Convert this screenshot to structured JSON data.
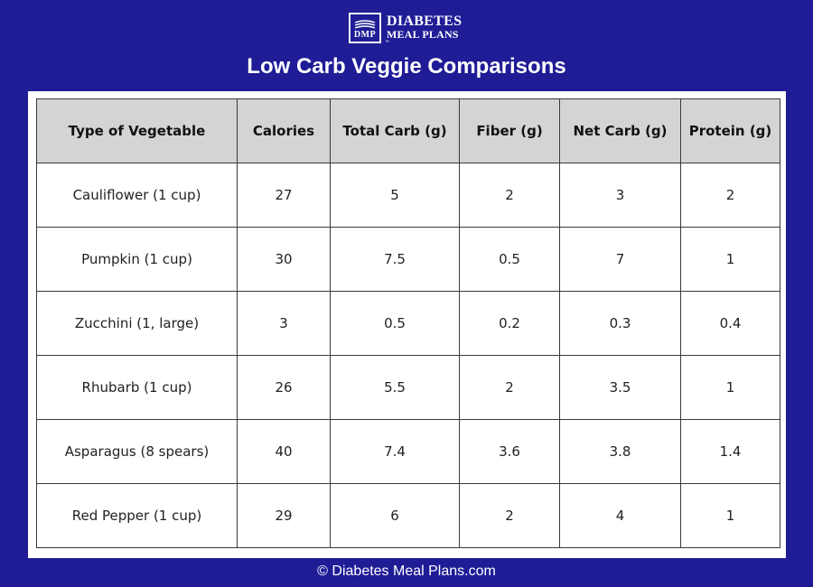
{
  "logo": {
    "mark": "DMP",
    "line1": "DIABETES",
    "line2": "MEAL PLANS",
    "tm": "™"
  },
  "title": "Low Carb Veggie Comparisons",
  "table": {
    "headers": [
      "Type of Vegetable",
      "Calories",
      "Total Carb (g)",
      "Fiber (g)",
      "Net Carb (g)",
      "Protein (g)"
    ],
    "rows": [
      [
        "Cauliflower (1 cup)",
        "27",
        "5",
        "2",
        "3",
        "2"
      ],
      [
        "Pumpkin (1 cup)",
        "30",
        "7.5",
        "0.5",
        "7",
        "1"
      ],
      [
        "Zucchini (1, large)",
        "3",
        "0.5",
        "0.2",
        "0.3",
        "0.4"
      ],
      [
        "Rhubarb (1 cup)",
        "26",
        "5.5",
        "2",
        "3.5",
        "1"
      ],
      [
        "Asparagus (8 spears)",
        "40",
        "7.4",
        "3.6",
        "3.8",
        "1.4"
      ],
      [
        "Red Pepper (1 cup)",
        "29",
        "6",
        "2",
        "4",
        "1"
      ]
    ]
  },
  "footer": "© Diabetes Meal Plans.com",
  "colors": {
    "background": "#1f1c96",
    "header_row": "#d4d4d4",
    "panel": "#ffffff"
  }
}
